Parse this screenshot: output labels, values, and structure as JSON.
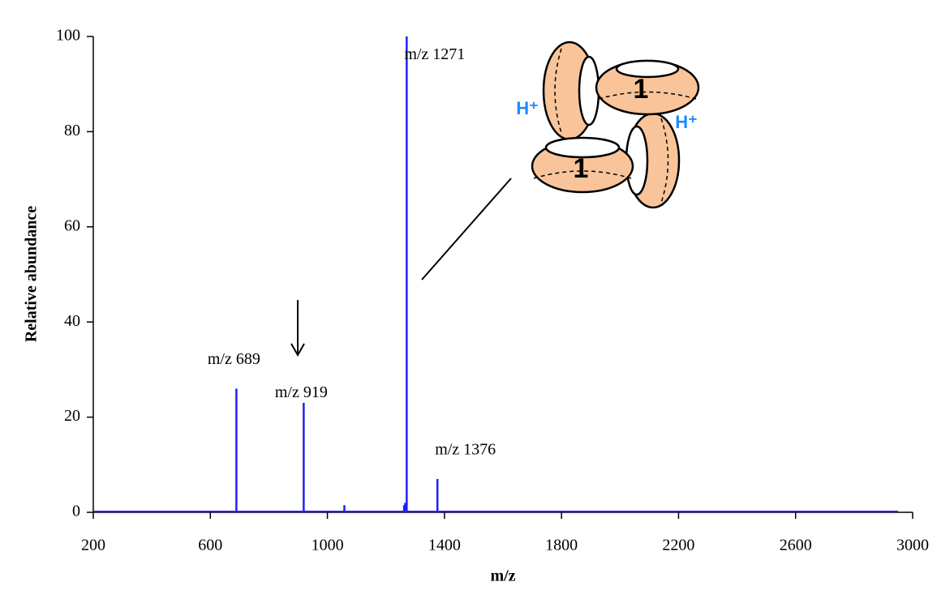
{
  "chart_data": {
    "type": "spectrum",
    "xlabel": "m/z",
    "ylabel": "Relative abundance",
    "color": "#1f1fff",
    "x": [
      689,
      919,
      1058,
      1262,
      1266,
      1271,
      1376
    ],
    "values": [
      26,
      23,
      1.5,
      1.5,
      2,
      100,
      7
    ],
    "xlim": [
      200,
      3000
    ],
    "ylim": [
      0,
      100
    ],
    "xticks": [
      200,
      600,
      1000,
      1400,
      1800,
      2200,
      2600,
      3000
    ],
    "yticks": [
      0,
      20,
      40,
      60,
      80,
      100
    ],
    "annotations": [
      {
        "text": "m/z 1271",
        "x": 1271,
        "y": 96
      },
      {
        "text": "m/z 689",
        "x": 689,
        "y": 32
      },
      {
        "text": "m/z 919",
        "x": 919,
        "y": 25
      },
      {
        "text": "m/z 1376",
        "x": 1376,
        "y": 13
      }
    ],
    "inset_labels": [
      "H⁺",
      "1",
      "H⁺",
      "1"
    ]
  }
}
